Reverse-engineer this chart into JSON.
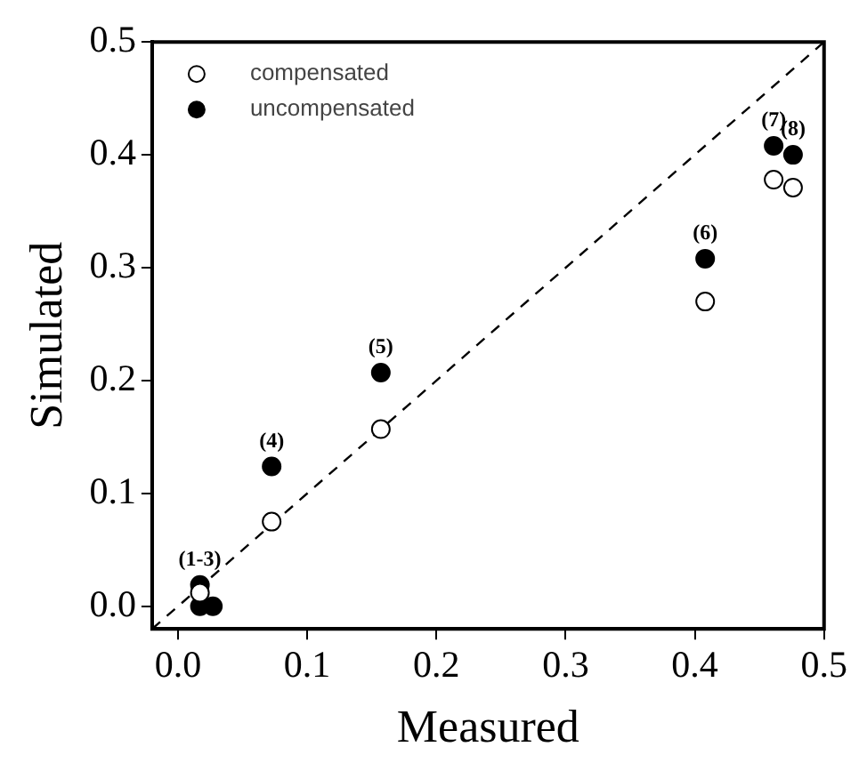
{
  "chart_data": {
    "type": "scatter",
    "xlabel": "Measured",
    "ylabel": "Simulated",
    "xlim": [
      -0.02,
      0.5
    ],
    "ylim": [
      -0.02,
      0.5
    ],
    "xticks": [
      {
        "value": 0,
        "label": "0.0"
      },
      0.1,
      0.2,
      0.3,
      0.4,
      0.5
    ],
    "yticks": [
      {
        "value": 0,
        "label": "0.0"
      },
      0.1,
      0.2,
      0.3,
      0.4,
      0.5
    ],
    "grid": false,
    "legend": "top left",
    "marker": "circle",
    "series": [
      {
        "name": "compensated",
        "color": "#000000",
        "x": [
          0.017,
          0.0725,
          0.157,
          0.408,
          0.461,
          0.476
        ],
        "values": [
          0.012,
          0.075,
          0.157,
          0.27,
          0.378,
          0.371
        ]
      },
      {
        "name": "uncompensated",
        "color": "#000000",
        "x": [
          0.017,
          0.017,
          0.027,
          0.0725,
          0.157,
          0.408,
          0.461,
          0.476
        ],
        "values": [
          0.019,
          0.0,
          0.0,
          0.124,
          0.207,
          0.308,
          0.408,
          0.4
        ]
      },
      {
        "type": "line",
        "color": "#000000",
        "line_style": "dashed",
        "marker": "none",
        "x": [
          -0.02,
          0.5
        ],
        "values": [
          -0.02,
          0.5
        ]
      }
    ],
    "annotations": [
      {
        "text": "(1-3)",
        "x": 0.017,
        "y": 0.019
      },
      {
        "text": "(4)",
        "x": 0.0725,
        "y": 0.124
      },
      {
        "text": "(5)",
        "x": 0.157,
        "y": 0.207
      },
      {
        "text": "(6)",
        "x": 0.408,
        "y": 0.308
      },
      {
        "text": "(7)",
        "x": 0.461,
        "y": 0.408
      },
      {
        "text": "(8)",
        "x": 0.476,
        "y": 0.4
      }
    ]
  }
}
